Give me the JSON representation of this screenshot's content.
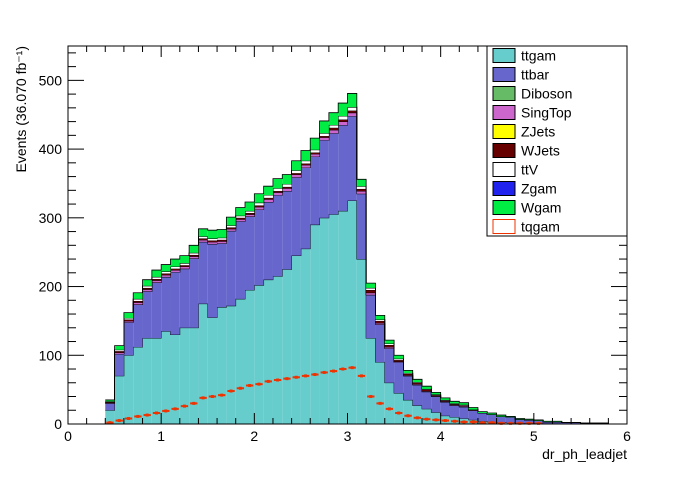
{
  "chart_data": {
    "type": "bar",
    "stacked": true,
    "title": "",
    "xlabel": "dr_ph_leadjet",
    "ylabel": "Events (36.070 fb⁻¹)",
    "xlim": [
      0,
      6
    ],
    "ylim": [
      0,
      550
    ],
    "xticks": [
      0,
      1,
      2,
      3,
      4,
      5,
      6
    ],
    "yticks": [
      0,
      100,
      200,
      300,
      400,
      500
    ],
    "bin_width": 0.1,
    "x": [
      0.4,
      0.5,
      0.6,
      0.7,
      0.8,
      0.9,
      1.0,
      1.1,
      1.2,
      1.3,
      1.4,
      1.5,
      1.6,
      1.7,
      1.8,
      1.9,
      2.0,
      2.1,
      2.2,
      2.3,
      2.4,
      2.5,
      2.6,
      2.7,
      2.8,
      2.9,
      3.0,
      3.1,
      3.2,
      3.3,
      3.4,
      3.5,
      3.6,
      3.7,
      3.8,
      3.9,
      4.0,
      4.1,
      4.2,
      4.3,
      4.4,
      4.5,
      4.6,
      4.7,
      4.8,
      4.9,
      5.0,
      5.1,
      5.2,
      5.3,
      5.4,
      5.5,
      5.6,
      5.7,
      5.8,
      5.9
    ],
    "legend_position": "top-right",
    "series": [
      {
        "name": "ttgam",
        "color": "#66cccc",
        "values": [
          20,
          70,
          100,
          112,
          125,
          125,
          135,
          130,
          140,
          140,
          175,
          155,
          170,
          172,
          182,
          195,
          202,
          210,
          215,
          225,
          245,
          255,
          290,
          300,
          305,
          310,
          325,
          240,
          125,
          90,
          60,
          45,
          35,
          27,
          22,
          17,
          12,
          10,
          8,
          6,
          4,
          3,
          2,
          2,
          1,
          1,
          1,
          0,
          0,
          0,
          0,
          0,
          0,
          0,
          0,
          0
        ]
      },
      {
        "name": "ttbar",
        "color": "#6666cc",
        "values": [
          10,
          32,
          48,
          62,
          68,
          81,
          79,
          91,
          86,
          101,
          90,
          107,
          93,
          109,
          113,
          107,
          110,
          113,
          118,
          114,
          114,
          118,
          99,
          113,
          118,
          125,
          123,
          95,
          63,
          55,
          50,
          45,
          35,
          30,
          25,
          23,
          20,
          17,
          17,
          14,
          12,
          11,
          9,
          8,
          6,
          5,
          4,
          3,
          3,
          2,
          2,
          1,
          1,
          1,
          0,
          0
        ]
      },
      {
        "name": "Diboson",
        "color": "#66bb66",
        "values": [
          0,
          0,
          0,
          0,
          0,
          0,
          0,
          0,
          0,
          0,
          0,
          0,
          0,
          0,
          0,
          0,
          0,
          0,
          0,
          0,
          0,
          0,
          0,
          0,
          0,
          0,
          0,
          0,
          0,
          0,
          0,
          0,
          0,
          0,
          0,
          0,
          0,
          0,
          0,
          0,
          0,
          0,
          0,
          0,
          0,
          0,
          0,
          0,
          0,
          0,
          0,
          0,
          0,
          0,
          0,
          0
        ]
      },
      {
        "name": "SingTop",
        "color": "#cc66cc",
        "values": [
          1,
          2,
          2,
          3,
          3,
          3,
          3,
          3,
          3,
          3,
          3,
          3,
          3,
          3,
          3,
          3,
          4,
          4,
          4,
          4,
          4,
          4,
          4,
          4,
          5,
          5,
          5,
          4,
          3,
          2,
          2,
          1,
          1,
          1,
          1,
          1,
          1,
          1,
          1,
          0,
          0,
          0,
          0,
          0,
          0,
          0,
          0,
          0,
          0,
          0,
          0,
          0,
          0,
          0,
          0,
          0
        ]
      },
      {
        "name": "ZJets",
        "color": "#ffff00",
        "values": [
          0,
          0,
          0,
          0,
          0,
          0,
          0,
          0,
          0,
          0,
          0,
          0,
          0,
          0,
          0,
          0,
          0,
          0,
          0,
          0,
          0,
          0,
          0,
          0,
          0,
          0,
          0,
          0,
          0,
          0,
          0,
          0,
          0,
          0,
          0,
          0,
          0,
          0,
          0,
          0,
          0,
          0,
          0,
          0,
          0,
          0,
          0,
          0,
          0,
          0,
          0,
          0,
          0,
          0,
          0,
          0
        ]
      },
      {
        "name": "WJets",
        "color": "#660000",
        "values": [
          1,
          2,
          2,
          2,
          2,
          2,
          2,
          2,
          2,
          2,
          2,
          2,
          2,
          2,
          2,
          2,
          2,
          2,
          2,
          2,
          2,
          2,
          2,
          2,
          3,
          3,
          3,
          3,
          4,
          3,
          3,
          2,
          2,
          2,
          2,
          1,
          1,
          1,
          1,
          1,
          0,
          0,
          0,
          0,
          0,
          0,
          0,
          0,
          0,
          0,
          0,
          0,
          0,
          0,
          0,
          0
        ]
      },
      {
        "name": "ttV",
        "color": "#ffffff",
        "values": [
          1,
          2,
          2,
          3,
          3,
          3,
          3,
          3,
          3,
          3,
          3,
          3,
          3,
          3,
          3,
          3,
          4,
          4,
          4,
          4,
          4,
          4,
          4,
          4,
          4,
          5,
          5,
          4,
          3,
          2,
          2,
          2,
          1,
          1,
          1,
          1,
          1,
          1,
          1,
          0,
          0,
          0,
          0,
          0,
          0,
          0,
          0,
          0,
          0,
          0,
          0,
          0,
          0,
          0,
          0,
          0
        ]
      },
      {
        "name": "Zgam",
        "color": "#2222ee",
        "values": [
          0,
          0,
          0,
          0,
          0,
          0,
          0,
          0,
          0,
          0,
          0,
          0,
          0,
          0,
          0,
          0,
          0,
          0,
          0,
          0,
          0,
          0,
          0,
          0,
          0,
          0,
          0,
          0,
          0,
          0,
          0,
          0,
          0,
          0,
          0,
          0,
          0,
          0,
          0,
          0,
          0,
          0,
          0,
          0,
          0,
          0,
          0,
          0,
          0,
          0,
          0,
          0,
          0,
          0,
          0,
          0
        ]
      },
      {
        "name": "Wgam",
        "color": "#00ee44",
        "values": [
          2,
          6,
          8,
          9,
          9,
          10,
          10,
          11,
          11,
          11,
          11,
          12,
          12,
          12,
          12,
          13,
          13,
          13,
          14,
          14,
          14,
          15,
          17,
          18,
          18,
          19,
          20,
          10,
          7,
          6,
          5,
          5,
          4,
          4,
          4,
          3,
          3,
          3,
          3,
          3,
          2,
          2,
          2,
          1,
          1,
          1,
          1,
          1,
          1,
          0,
          0,
          0,
          0,
          0,
          0,
          0
        ]
      }
    ],
    "signal": {
      "name": "tqgam",
      "color": "#ee3300",
      "style": "markers",
      "values": [
        2,
        5,
        8,
        11,
        13,
        16,
        19,
        22,
        26,
        30,
        38,
        40,
        42,
        48,
        52,
        56,
        58,
        62,
        64,
        66,
        68,
        70,
        72,
        75,
        77,
        80,
        82,
        70,
        40,
        30,
        22,
        16,
        12,
        9,
        7,
        6,
        5,
        4,
        3,
        3,
        2,
        2,
        1,
        1,
        1,
        1,
        1,
        0,
        0,
        0,
        0,
        0,
        0,
        0,
        0,
        0
      ]
    }
  }
}
